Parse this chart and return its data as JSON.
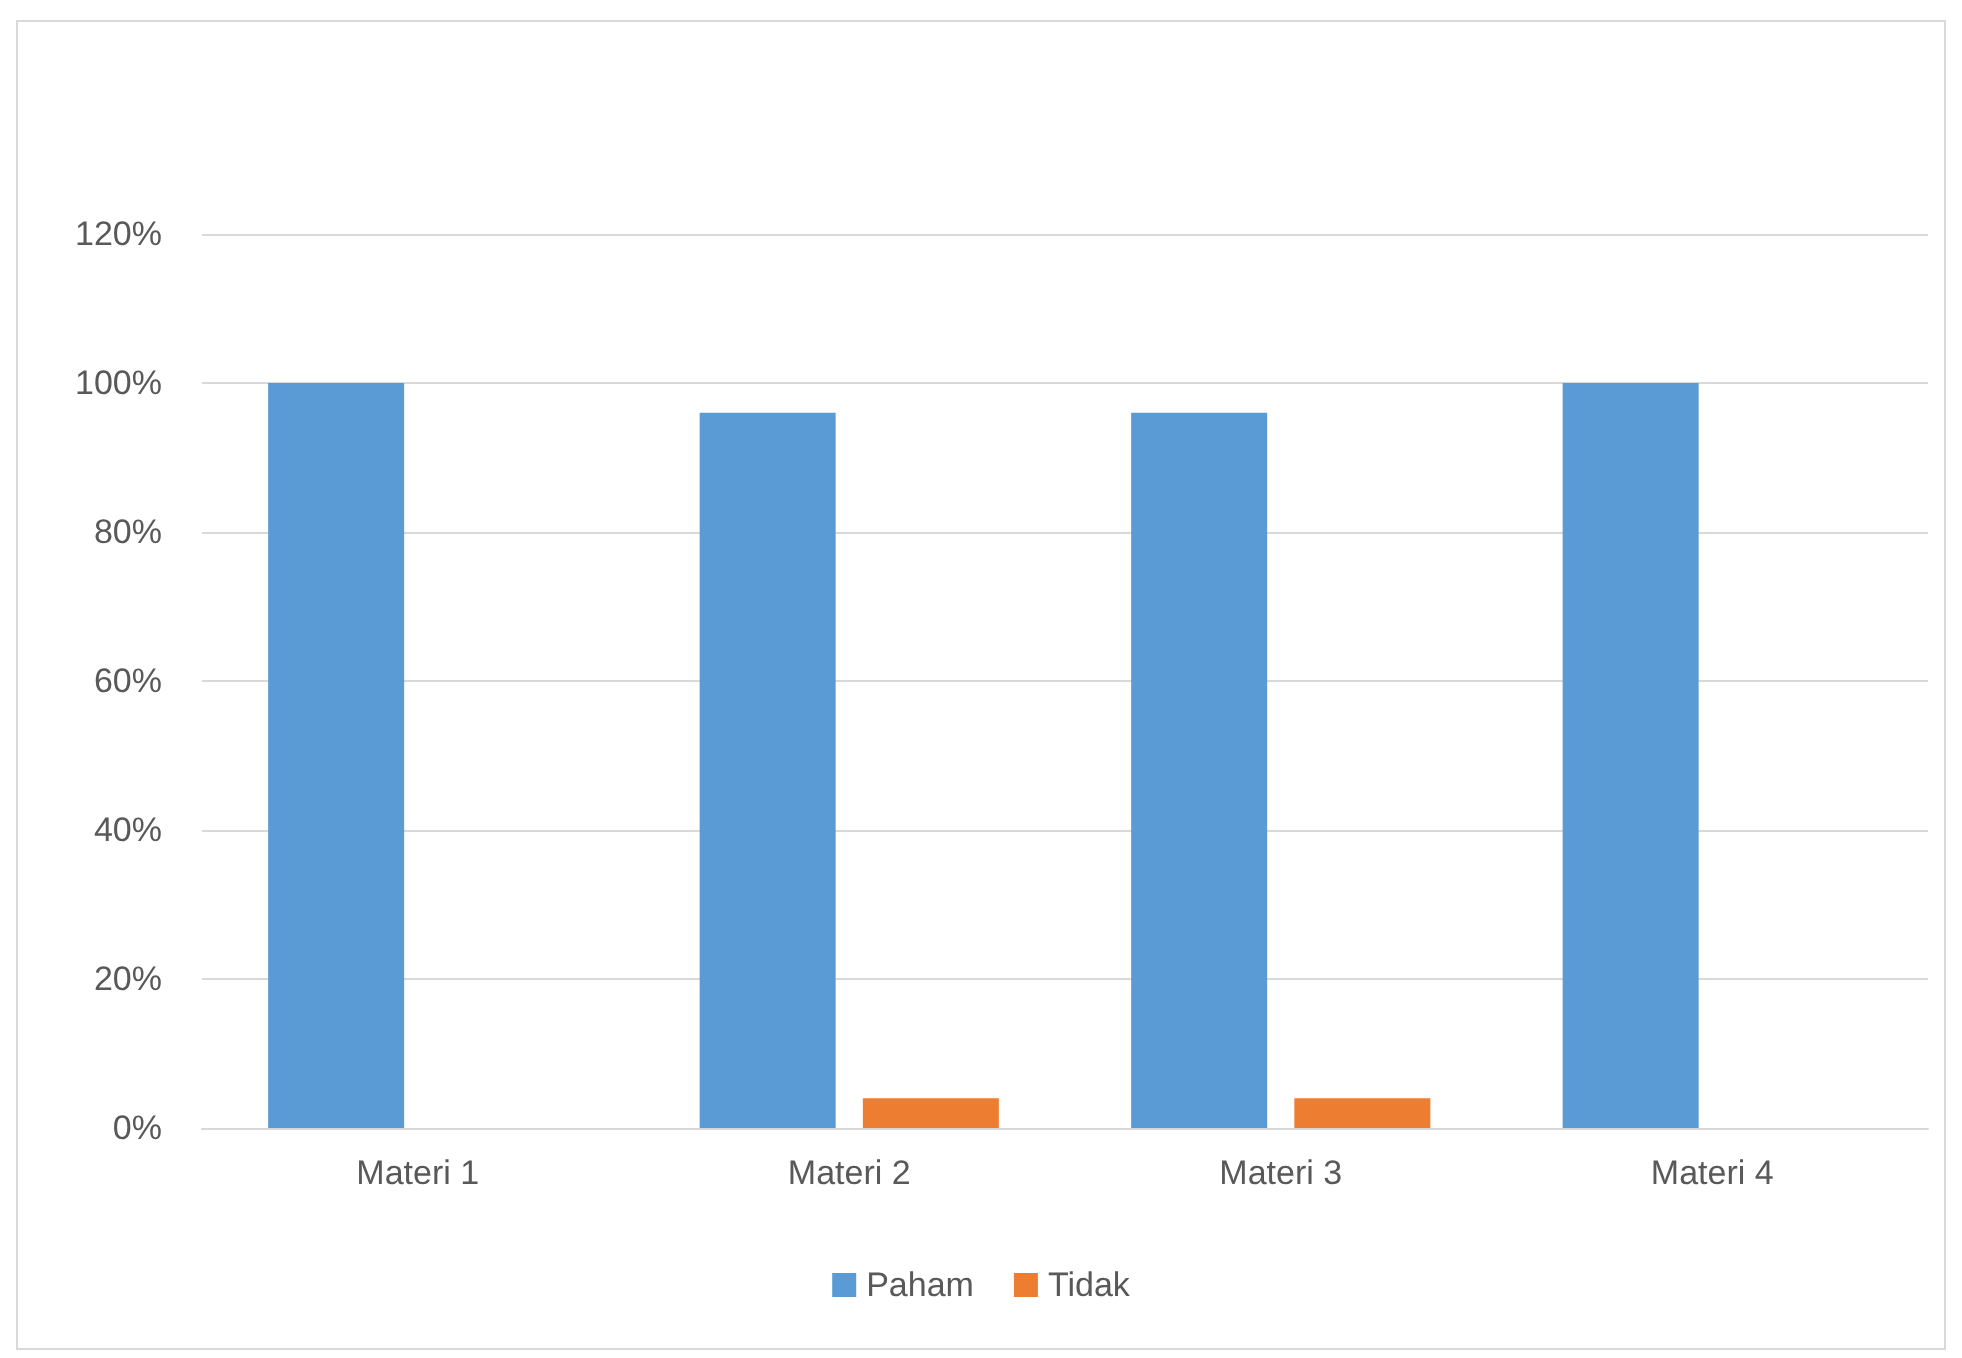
{
  "chart_data": {
    "type": "bar",
    "categories": [
      "Materi 1",
      "Materi 2",
      "Materi 3",
      "Materi 4"
    ],
    "series": [
      {
        "name": "Paham",
        "color": "#5b9bd5",
        "values": [
          100,
          96,
          96,
          100
        ]
      },
      {
        "name": "Tidak",
        "color": "#ed7d31",
        "values": [
          0,
          4,
          4,
          0
        ]
      }
    ],
    "ylim": [
      0,
      120
    ],
    "yticks": [
      {
        "value": 0,
        "label": "0%"
      },
      {
        "value": 20,
        "label": "20%"
      },
      {
        "value": 40,
        "label": "40%"
      },
      {
        "value": 60,
        "label": "60%"
      },
      {
        "value": 80,
        "label": "80%"
      },
      {
        "value": 100,
        "label": "100%"
      },
      {
        "value": 120,
        "label": "120%"
      }
    ],
    "grid": "y",
    "legend": "bottom"
  }
}
